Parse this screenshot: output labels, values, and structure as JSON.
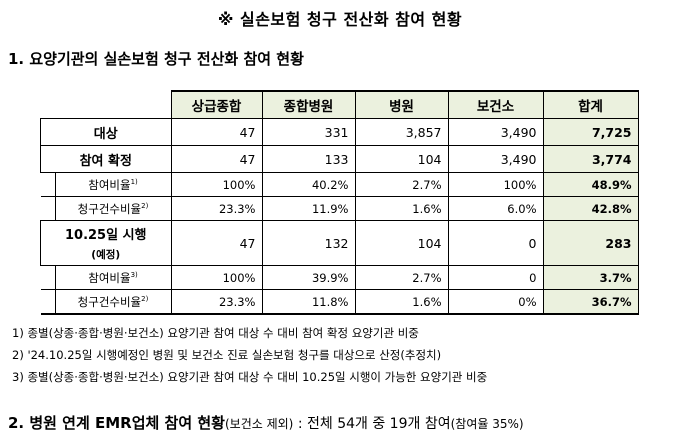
{
  "title": "※ 실손보험 청구 전산화 참여 현황",
  "section1": "1. 요양기관의 실손보험 청구 전산화 참여 현황",
  "table": {
    "columns": [
      "상급종합",
      "종합병원",
      "병원",
      "보건소",
      "합계"
    ],
    "rows": {
      "target": {
        "label": "대상",
        "values": [
          "47",
          "331",
          "3,857",
          "3,490"
        ],
        "total": "7,725"
      },
      "confirmed": {
        "label": "참여 확정",
        "values": [
          "47",
          "133",
          "104",
          "3,490"
        ],
        "total": "3,774"
      },
      "confirmed_rate": {
        "label": "참여비율",
        "sup": "1)",
        "values": [
          "100%",
          "40.2%",
          "2.7%",
          "100%"
        ],
        "total": "48.9%"
      },
      "confirmed_claim": {
        "label": "청구건수비율",
        "sup": "2)",
        "values": [
          "23.3%",
          "11.9%",
          "1.6%",
          "6.0%"
        ],
        "total": "42.8%"
      },
      "oct": {
        "label": "10.25일 시행",
        "note": "(예정)",
        "values": [
          "47",
          "132",
          "104",
          "0"
        ],
        "total": "283"
      },
      "oct_rate": {
        "label": "참여비율",
        "sup": "3)",
        "values": [
          "100%",
          "39.9%",
          "2.7%",
          "0"
        ],
        "total": "3.7%"
      },
      "oct_claim": {
        "label": "청구건수비율",
        "sup": "2)",
        "values": [
          "23.3%",
          "11.8%",
          "1.6%",
          "0%"
        ],
        "total": "36.7%"
      }
    }
  },
  "notes": [
    "1) 종별(상종·종합·병원·보건소) 요양기관 참여 대상 수 대비 참여 확정 요양기관 비중",
    "2) '24.10.25일 시행예정인 병원 및 보건소 진료 실손보험 청구를 대상으로 산정(추정치)",
    "3) 종별(상종·종합·병원·보건소) 요양기관 참여 대상 수 대비 10.25일 시행이 가능한 요양기관 비중"
  ],
  "section2": {
    "heading": "2. 병원 연계 EMR업체 참여 현황",
    "paren1": "(보건소 제외)",
    "summary": " : 전체 54개 중 19개 참여",
    "paren2": "(참여율 35%)"
  }
}
